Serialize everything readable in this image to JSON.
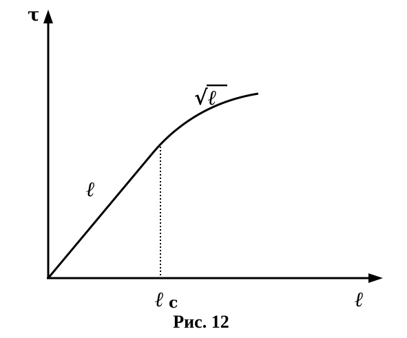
{
  "figure": {
    "y_axis_label": "τ",
    "x_axis_label": "ℓ",
    "line_label": "ℓ",
    "curve_label": "√ℓ",
    "critical_label": {
      "base": "ℓ",
      "subscript": "c"
    },
    "caption": "Рис. 12"
  }
}
